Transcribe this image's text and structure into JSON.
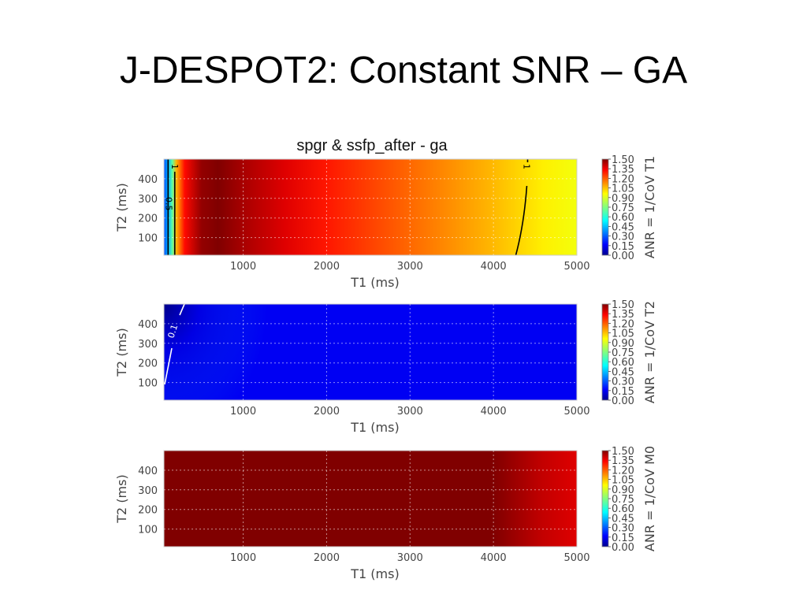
{
  "slide": {
    "title": "J-DESPOT2: Constant SNR – GA"
  },
  "figure": {
    "title": "spgr & ssfp_after - ga"
  },
  "colors": {
    "axes_text": "#444444",
    "grid": "#cccccc",
    "contour_dark": "#000000",
    "contour_light": "#ffffff"
  },
  "chart_data": [
    {
      "type": "heatmap",
      "name": "T1 panel",
      "title": "spgr & ssfp_after - ga",
      "xlabel": "T1 (ms)",
      "ylabel": "T2 (ms)",
      "x_ticks": [
        1000,
        2000,
        3000,
        4000,
        5000
      ],
      "y_ticks": [
        100,
        200,
        300,
        400
      ],
      "xlim": [
        50,
        5000
      ],
      "ylim": [
        10,
        500
      ],
      "colorbar": {
        "label": "ANR = 1/CoV T1",
        "ticks": [
          "0.00",
          "0.15",
          "0.30",
          "0.45",
          "0.60",
          "0.75",
          "0.90",
          "1.05",
          "1.20",
          "1.35",
          "1.50"
        ],
        "range": [
          0,
          1.5
        ],
        "colormap": "jet"
      },
      "profile_along_T1": {
        "T1": [
          50,
          100,
          150,
          200,
          300,
          500,
          700,
          1000,
          1500,
          2000,
          2500,
          3000,
          3500,
          4000,
          4300,
          4600,
          5000
        ],
        "ANR": [
          0.3,
          0.45,
          0.7,
          1.05,
          1.3,
          1.47,
          1.5,
          1.44,
          1.36,
          1.28,
          1.22,
          1.16,
          1.1,
          1.04,
          1.0,
          0.96,
          0.92
        ]
      },
      "contours": [
        {
          "level": "0.5",
          "T1_approx": 100
        },
        {
          "level": "1",
          "T1_approx": 180
        },
        {
          "level": "1",
          "T1_approx": 4400
        }
      ]
    },
    {
      "type": "heatmap",
      "name": "T2 panel",
      "xlabel": "T1 (ms)",
      "ylabel": "T2 (ms)",
      "x_ticks": [
        1000,
        2000,
        3000,
        4000,
        5000
      ],
      "y_ticks": [
        100,
        200,
        300,
        400
      ],
      "xlim": [
        50,
        5000
      ],
      "ylim": [
        10,
        500
      ],
      "colorbar": {
        "label": "ANR = 1/CoV T2",
        "ticks": [
          "0.00",
          "0.15",
          "0.30",
          "0.45",
          "0.60",
          "0.75",
          "0.90",
          "1.05",
          "1.20",
          "1.35",
          "1.50"
        ],
        "range": [
          0,
          1.5
        ],
        "colormap": "jet"
      },
      "background_ANR": 0.17,
      "contours": [
        {
          "level": "0.1",
          "T1_approx": 200
        }
      ]
    },
    {
      "type": "heatmap",
      "name": "M0 panel",
      "xlabel": "T1 (ms)",
      "ylabel": "T2 (ms)",
      "x_ticks": [
        1000,
        2000,
        3000,
        4000,
        5000
      ],
      "y_ticks": [
        100,
        200,
        300,
        400
      ],
      "xlim": [
        50,
        5000
      ],
      "ylim": [
        10,
        500
      ],
      "colorbar": {
        "label": "ANR = 1/CoV M0",
        "ticks": [
          "0.00",
          "0.15",
          "0.30",
          "0.45",
          "0.60",
          "0.75",
          "0.90",
          "1.05",
          "1.20",
          "1.35",
          "1.50"
        ],
        "range": [
          0,
          1.5
        ],
        "colormap": "jet"
      },
      "profile_along_T1": {
        "T1": [
          50,
          4000,
          4300,
          4600,
          5000
        ],
        "ANR": [
          1.5,
          1.5,
          1.45,
          1.4,
          1.36
        ]
      }
    }
  ]
}
